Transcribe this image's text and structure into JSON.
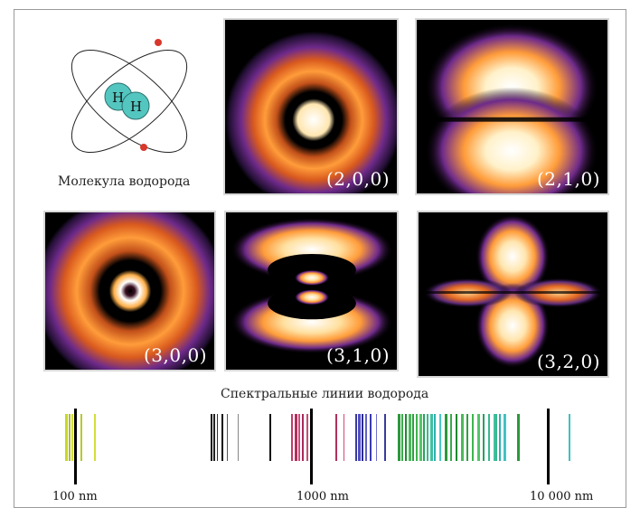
{
  "molecule": {
    "caption": "Молекула водорода",
    "atom_label_1": "H",
    "atom_label_2": "H",
    "atom_color": "#54c6c0",
    "electron_color": "#d8372c"
  },
  "orbitals": [
    {
      "id": "200",
      "label": "(2,0,0)"
    },
    {
      "id": "210",
      "label": "(2,1,0)"
    },
    {
      "id": "300",
      "label": "(3,0,0)"
    },
    {
      "id": "310",
      "label": "(3,1,0)"
    },
    {
      "id": "320",
      "label": "(3,2,0)"
    }
  ],
  "spectrum": {
    "title": "Спектральные линии водорода",
    "tick_labels": [
      "100 nm",
      "1000  nm",
      "10 000 nm"
    ]
  },
  "colors": {
    "background": "#ffffff",
    "panel_bg": "#000000",
    "glow_inner": "#ffffff",
    "glow_mid": "#ffa64d",
    "glow_outer": "#5a2a7a"
  }
}
